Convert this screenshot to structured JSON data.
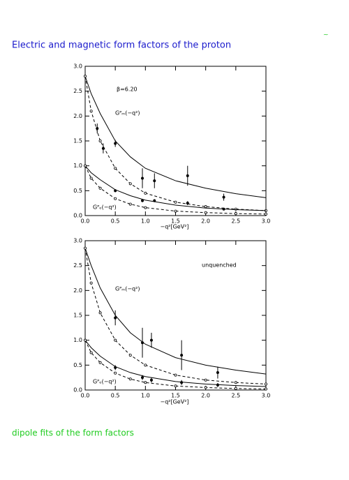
{
  "title": "Electric and magnetic form factors of the proton",
  "corner_mark": "~",
  "footer": "dipole fits of the form factors",
  "chart_data": [
    {
      "type": "line",
      "xlabel": "−q²[GeV²]",
      "annotations": [
        "β=6.20",
        "Gᴾₘ(−q²)",
        "Gᴾₑ(−q²)"
      ],
      "xlim": [
        0,
        3
      ],
      "ylim": [
        0,
        3
      ],
      "xticks": [
        {
          "value": 0,
          "label": "0.0"
        },
        {
          "value": 0.5,
          "label": "0.5"
        },
        {
          "value": 1,
          "label": "1.0"
        },
        {
          "value": 1.5,
          "label": "1.5"
        },
        {
          "value": 2,
          "label": "2.0"
        },
        {
          "value": 2.5,
          "label": "2.5"
        },
        {
          "value": 3,
          "label": "3.0"
        }
      ],
      "yticks": [
        {
          "value": 0,
          "label": "0.0"
        },
        {
          "value": 0.5,
          "label": "0.5"
        },
        {
          "value": 1,
          "label": "1.0"
        },
        {
          "value": 1.5,
          "label": "1.5"
        },
        {
          "value": 2,
          "label": "2.0"
        },
        {
          "value": 2.5,
          "label": "2.5"
        },
        {
          "value": 3,
          "label": "3.0"
        }
      ],
      "series": [
        {
          "style": "solid",
          "color": "#000000",
          "x": [
            0,
            0.1,
            0.25,
            0.5,
            0.75,
            1,
            1.5,
            2,
            2.5,
            3
          ],
          "values": [
            2.8,
            2.45,
            2.05,
            1.5,
            1.18,
            0.95,
            0.7,
            0.55,
            0.44,
            0.36
          ]
        },
        {
          "style": "dashed",
          "color": "#000000",
          "x": [
            0,
            0.1,
            0.25,
            0.5,
            0.75,
            1,
            1.5,
            2,
            2.5,
            3
          ],
          "values": [
            2.8,
            2.1,
            1.5,
            0.95,
            0.64,
            0.45,
            0.27,
            0.18,
            0.13,
            0.1
          ]
        },
        {
          "style": "solid",
          "color": "#000000",
          "x": [
            0,
            0.1,
            0.25,
            0.5,
            0.75,
            1,
            1.5,
            2,
            2.5,
            3
          ],
          "values": [
            1.0,
            0.86,
            0.72,
            0.52,
            0.4,
            0.31,
            0.21,
            0.15,
            0.12,
            0.1
          ]
        },
        {
          "style": "dashed",
          "color": "#000000",
          "x": [
            0,
            0.1,
            0.25,
            0.5,
            0.75,
            1,
            1.5,
            2,
            2.5,
            3
          ],
          "values": [
            1.0,
            0.75,
            0.55,
            0.34,
            0.23,
            0.16,
            0.09,
            0.06,
            0.04,
            0.03
          ]
        },
        {
          "style": "points",
          "color": "#000000",
          "x": [
            0.2,
            0.3,
            0.5,
            0.95,
            1.15,
            1.7,
            2.3
          ],
          "values": [
            1.75,
            1.35,
            1.45,
            0.75,
            0.7,
            0.8,
            0.37
          ],
          "errors": [
            0.1,
            0.1,
            0.07,
            0.2,
            0.15,
            0.2,
            0.07
          ]
        },
        {
          "style": "points",
          "color": "#000000",
          "x": [
            0.5,
            0.95,
            1.15,
            1.7,
            2.3
          ],
          "values": [
            0.5,
            0.3,
            0.3,
            0.25,
            0.13
          ],
          "errors": [
            0.03,
            0.03,
            0.03,
            0.04,
            0.02
          ]
        }
      ]
    },
    {
      "type": "line",
      "xlabel": "−q²[GeV²]",
      "annotations": [
        "unquenched",
        "Gᴾₘ(−q²)",
        "Gᴾₑ(−q²)"
      ],
      "xlim": [
        0,
        3
      ],
      "ylim": [
        0,
        3
      ],
      "xticks": [
        {
          "value": 0,
          "label": "0.0"
        },
        {
          "value": 0.5,
          "label": "0.5"
        },
        {
          "value": 1,
          "label": "1.0"
        },
        {
          "value": 1.5,
          "label": "1.5"
        },
        {
          "value": 2,
          "label": "2.0"
        },
        {
          "value": 2.5,
          "label": "2.5"
        },
        {
          "value": 3,
          "label": "3.0"
        }
      ],
      "yticks": [
        {
          "value": 0,
          "label": "0.0"
        },
        {
          "value": 0.5,
          "label": "0.5"
        },
        {
          "value": 1,
          "label": "1.0"
        },
        {
          "value": 1.5,
          "label": "1.5"
        },
        {
          "value": 2,
          "label": "2.0"
        },
        {
          "value": 2.5,
          "label": "2.5"
        },
        {
          "value": 3,
          "label": "3.0"
        }
      ],
      "series": [
        {
          "style": "solid",
          "color": "#000000",
          "x": [
            0,
            0.1,
            0.25,
            0.5,
            0.75,
            1,
            1.5,
            2,
            2.5,
            3
          ],
          "values": [
            2.85,
            2.5,
            2.05,
            1.5,
            1.15,
            0.92,
            0.65,
            0.5,
            0.4,
            0.32
          ]
        },
        {
          "style": "dashed",
          "color": "#000000",
          "x": [
            0,
            0.1,
            0.25,
            0.5,
            0.75,
            1,
            1.5,
            2,
            2.5,
            3
          ],
          "values": [
            2.85,
            2.15,
            1.55,
            1.0,
            0.7,
            0.5,
            0.3,
            0.2,
            0.15,
            0.12
          ]
        },
        {
          "style": "solid",
          "color": "#000000",
          "x": [
            0,
            0.1,
            0.25,
            0.5,
            0.75,
            1,
            1.5,
            2,
            2.5,
            3
          ],
          "values": [
            1.0,
            0.85,
            0.68,
            0.47,
            0.35,
            0.27,
            0.17,
            0.12,
            0.09,
            0.07
          ]
        },
        {
          "style": "dashed",
          "color": "#000000",
          "x": [
            0,
            0.1,
            0.25,
            0.5,
            0.75,
            1,
            1.5,
            2,
            2.5,
            3
          ],
          "values": [
            1.0,
            0.75,
            0.55,
            0.34,
            0.22,
            0.15,
            0.08,
            0.05,
            0.03,
            0.02
          ]
        },
        {
          "style": "points",
          "color": "#000000",
          "x": [
            0.5,
            0.95,
            1.1,
            1.6,
            2.2
          ],
          "values": [
            1.45,
            0.95,
            1.0,
            0.7,
            0.35
          ],
          "errors": [
            0.15,
            0.3,
            0.15,
            0.3,
            0.12
          ]
        },
        {
          "style": "points",
          "color": "#000000",
          "x": [
            0.5,
            0.95,
            1.1,
            1.6,
            2.2
          ],
          "values": [
            0.45,
            0.25,
            0.2,
            0.15,
            0.1
          ],
          "errors": [
            0.05,
            0.05,
            0.05,
            0.05,
            0.04
          ]
        }
      ]
    }
  ]
}
